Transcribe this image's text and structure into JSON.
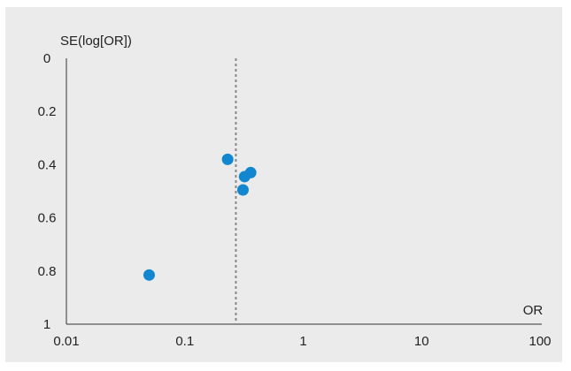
{
  "chart_data": {
    "type": "scatter",
    "title": "",
    "xlabel": "OR",
    "ylabel": "SE(log[OR])",
    "x_scale": "log",
    "xlim": [
      0.01,
      100
    ],
    "ylim": [
      0,
      1
    ],
    "y_inverted": true,
    "x_ticks": [
      "0.01",
      "0.1",
      "1",
      "10",
      "100"
    ],
    "y_ticks": [
      "0",
      "0.2",
      "0.4",
      "0.6",
      "0.8",
      "1"
    ],
    "reference_line_x": 0.27,
    "reference_line_style": "dashed",
    "point_color": "#1287cf",
    "points": [
      {
        "x": 0.23,
        "y": 0.38
      },
      {
        "x": 0.36,
        "y": 0.43
      },
      {
        "x": 0.32,
        "y": 0.445
      },
      {
        "x": 0.31,
        "y": 0.495
      },
      {
        "x": 0.05,
        "y": 0.815
      }
    ],
    "grid": false
  }
}
